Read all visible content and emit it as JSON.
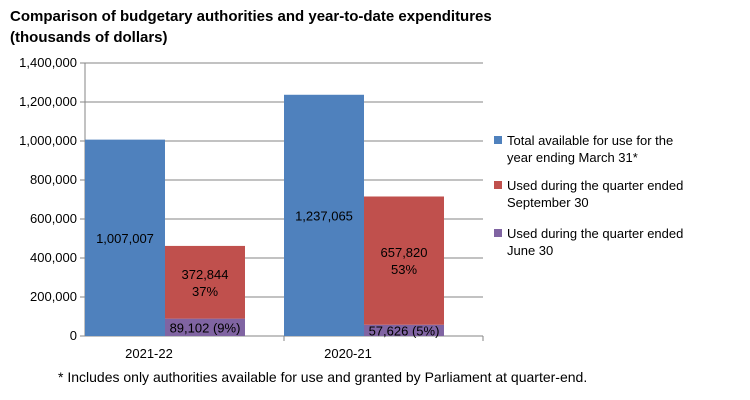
{
  "chart_data": {
    "type": "bar",
    "title": "Comparison of budgetary authorities and year-to-date expenditures",
    "subtitle": "(thousands of dollars)",
    "categories": [
      "2021-22",
      "2020-21"
    ],
    "ylim": [
      0,
      1400000
    ],
    "yticks": [
      0,
      200000,
      400000,
      600000,
      800000,
      1000000,
      1200000,
      1400000
    ],
    "ytick_labels": [
      "0",
      "200,000",
      "400,000",
      "600,000",
      "800,000",
      "1,000,000",
      "1,200,000",
      "1,400,000"
    ],
    "grid": true,
    "legend_position": "right",
    "series": [
      {
        "name": "Total available for use for the year ending March 31*",
        "color": "#4F81BD",
        "values": [
          1007007,
          1237065
        ],
        "labels": [
          "1,007,007",
          "1,237,065"
        ],
        "stack": "total"
      },
      {
        "name": "Used during the quarter ended June 30",
        "color": "#8064A2",
        "values": [
          89102,
          57626
        ],
        "labels": [
          "89,102 (9%)",
          "57,626 (5%)"
        ],
        "stack": "used"
      },
      {
        "name": "Used during the quarter ended September 30",
        "color": "#C0504D",
        "values": [
          372844,
          657820
        ],
        "labels": [
          "372,844\n37%",
          "657,820\n53%"
        ],
        "stack": "used"
      }
    ],
    "legend_order": [
      0,
      2,
      1
    ],
    "footnote": "* Includes only authorities available for use and granted by Parliament at quarter-end."
  }
}
